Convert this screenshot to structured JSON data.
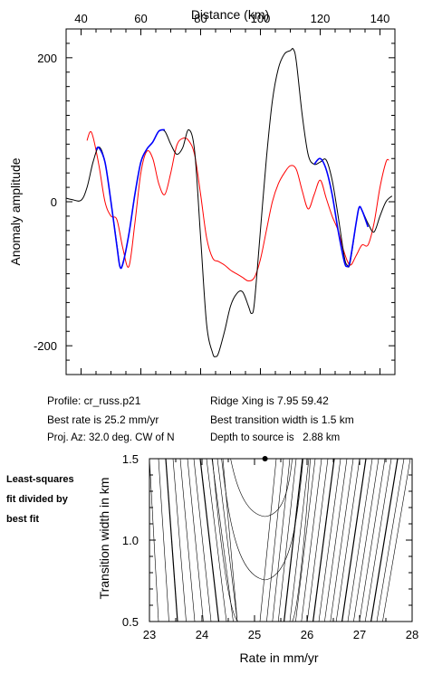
{
  "chart_data": [
    {
      "type": "line",
      "xlabel": "Distance (km)",
      "ylabel": "Anomaly amplitude",
      "xlim": [
        35,
        145
      ],
      "ylim": [
        -240,
        240
      ],
      "xticks": [
        40,
        60,
        80,
        100,
        120,
        140
      ],
      "yticks": [
        200,
        0,
        -200
      ],
      "series": [
        {
          "color": "#000000",
          "role": "observed",
          "x": [
            35,
            37,
            40,
            42,
            44,
            46,
            48,
            50,
            52,
            53,
            54,
            56,
            58,
            60,
            62,
            64,
            66,
            68,
            70,
            72,
            74,
            76,
            78,
            80,
            82,
            84,
            85,
            86,
            88,
            90,
            92,
            94,
            96,
            97,
            98,
            100,
            102,
            104,
            106,
            108,
            110,
            111,
            112,
            114,
            116,
            118,
            120,
            122,
            124,
            126,
            128,
            129,
            130,
            132,
            133,
            134,
            136,
            138,
            140,
            142,
            144
          ],
          "y": [
            5,
            3,
            2,
            20,
            55,
            76,
            55,
            0,
            -60,
            -90,
            -85,
            -45,
            10,
            55,
            73,
            83,
            98,
            98,
            80,
            66,
            75,
            100,
            70,
            -50,
            -170,
            -210,
            -215,
            -210,
            -180,
            -145,
            -128,
            -125,
            -145,
            -155,
            -140,
            -40,
            60,
            140,
            185,
            205,
            210,
            212,
            195,
            120,
            65,
            52,
            55,
            58,
            30,
            -20,
            -75,
            -88,
            -85,
            -30,
            -8,
            -12,
            -30,
            -42,
            -20,
            0,
            8
          ]
        },
        {
          "color": "#0000ff",
          "role": "model (fit region)",
          "x": [
            45,
            46,
            48,
            50,
            52,
            53,
            54,
            56,
            58,
            60,
            62,
            64,
            66,
            68
          ],
          "y": [
            72,
            75,
            55,
            0,
            -62,
            -90,
            -86,
            -45,
            10,
            55,
            73,
            83,
            98,
            100
          ]
        },
        {
          "color": "#0000ff",
          "role": "model (fit region)",
          "x": [
            118,
            120,
            122,
            124,
            126,
            128,
            129,
            130,
            132,
            133,
            134,
            136
          ],
          "y": [
            52,
            60,
            45,
            10,
            -40,
            -82,
            -90,
            -82,
            -30,
            -8,
            -12,
            -35
          ]
        },
        {
          "color": "#ff0000",
          "role": "model",
          "x": [
            42,
            43,
            44,
            46,
            48,
            50,
            52,
            54,
            56,
            58,
            60,
            62,
            64,
            66,
            68,
            70,
            72,
            74,
            76,
            78,
            80,
            82,
            84,
            86,
            88,
            90,
            92,
            94,
            96,
            98,
            100,
            102,
            104,
            106,
            108,
            110,
            112,
            114,
            116,
            118,
            120,
            122,
            124,
            126,
            128,
            130,
            132,
            134,
            136,
            138,
            140,
            142,
            143
          ],
          "y": [
            85,
            97,
            90,
            50,
            0,
            -20,
            -25,
            -65,
            -90,
            -30,
            40,
            70,
            60,
            25,
            10,
            40,
            78,
            88,
            85,
            65,
            10,
            -50,
            -78,
            -83,
            -88,
            -95,
            -100,
            -105,
            -110,
            -105,
            -80,
            -40,
            0,
            25,
            40,
            50,
            45,
            15,
            -10,
            10,
            30,
            5,
            -20,
            -40,
            -70,
            -88,
            -75,
            -60,
            -60,
            -30,
            20,
            55,
            58
          ]
        }
      ]
    },
    {
      "type": "contour",
      "xlabel": "Rate in mm/yr",
      "ylabel": "Transition width in km",
      "xlim": [
        23,
        28
      ],
      "ylim": [
        0.5,
        1.5
      ],
      "xticks": [
        "23",
        "24",
        "25",
        "26",
        "27",
        "28"
      ],
      "yticks": [
        "1.5",
        "1.0",
        "0.5"
      ],
      "best_fit": {
        "rate": 25.2,
        "width": 1.5
      }
    }
  ],
  "info": {
    "profile": "Profile: cr_russ.p21",
    "best_rate": "Best rate is 25.2 mm/yr",
    "proj_az": "Proj. Az: 32.0 deg. CW of N",
    "ridge_xing": "Ridge Xing is 7.95 59.42",
    "best_width": "Best transition width is 1.5 km",
    "depth": "Depth to source is   2.88 km"
  },
  "side_label": {
    "line1": "Least-squares",
    "line2": "fit divided by",
    "line3": "best fit"
  }
}
